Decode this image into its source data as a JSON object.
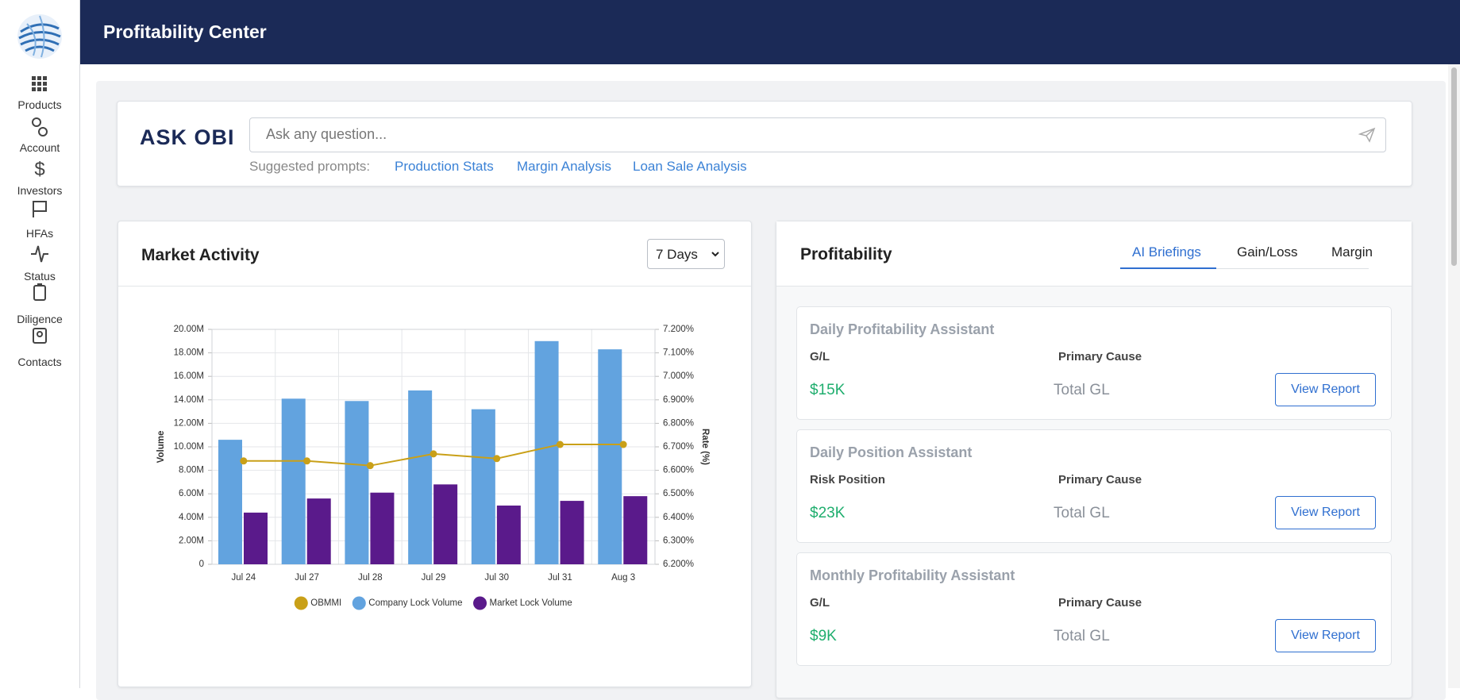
{
  "header": {
    "title": "Profitability Center"
  },
  "sidebar": {
    "items": [
      "Products",
      "Account",
      "Investors",
      "HFAs",
      "Status",
      "Diligence",
      "Contacts"
    ]
  },
  "ask": {
    "title": "ASK OBI",
    "placeholder": "Ask any question...",
    "suggested_label": "Suggested prompts:",
    "prompts": [
      "Production Stats",
      "Margin Analysis",
      "Loan Sale Analysis"
    ]
  },
  "market_activity": {
    "title": "Market Activity",
    "range": "7 Days"
  },
  "chart_data": {
    "type": "bar",
    "y_label": "Volume",
    "y2_label": "Rate (%)",
    "categories": [
      "Jul 24",
      "Jul 27",
      "Jul 28",
      "Jul 29",
      "Jul 30",
      "Jul 31",
      "Aug 3"
    ],
    "series": [
      {
        "name": "OBMMI",
        "type": "line",
        "axis": "y2",
        "color": "#c9a018",
        "values": [
          6.64,
          6.64,
          6.62,
          6.67,
          6.65,
          6.71,
          6.71
        ]
      },
      {
        "name": "Company Lock Volume",
        "color": "#62a3df",
        "values": [
          10600000,
          14100000,
          13900000,
          14800000,
          13200000,
          19000000,
          18300000
        ]
      },
      {
        "name": "Market Lock Volume",
        "color": "#5a1a8b",
        "values": [
          4400000,
          5600000,
          6100000,
          6800000,
          5000000,
          5400000,
          5800000
        ]
      }
    ],
    "ylim": [
      0,
      20000000
    ],
    "yticks": [
      0,
      {
        "value": 2000000,
        "label": "2.00M"
      },
      {
        "value": 4000000,
        "label": "4.00M"
      },
      {
        "value": 6000000,
        "label": "6.00M"
      },
      {
        "value": 8000000,
        "label": "8.00M"
      },
      {
        "value": 10000000,
        "label": "10.00M"
      },
      {
        "value": 12000000,
        "label": "12.00M"
      },
      {
        "value": 14000000,
        "label": "14.00M"
      },
      {
        "value": 16000000,
        "label": "16.00M"
      },
      {
        "value": 18000000,
        "label": "18.00M"
      },
      {
        "value": 20000000,
        "label": "20.00M"
      }
    ],
    "y2lim": [
      6.2,
      7.2
    ],
    "y2ticks": [
      {
        "value": 6.2,
        "label": "6.200%"
      },
      {
        "value": 6.3,
        "label": "6.300%"
      },
      {
        "value": 6.4,
        "label": "6.400%"
      },
      {
        "value": 6.5,
        "label": "6.500%"
      },
      {
        "value": 6.6,
        "label": "6.600%"
      },
      {
        "value": 6.7,
        "label": "6.700%"
      },
      {
        "value": 6.8,
        "label": "6.800%"
      },
      {
        "value": 6.9,
        "label": "6.900%"
      },
      {
        "value": 7.0,
        "label": "7.000%"
      },
      {
        "value": 7.1,
        "label": "7.100%"
      },
      {
        "value": 7.2,
        "label": "7.200%"
      }
    ],
    "grid": true,
    "legend": "bottom"
  },
  "profitability": {
    "title": "Profitability",
    "tabs": [
      "AI Briefings",
      "Gain/Loss",
      "Margin"
    ],
    "cards": [
      {
        "title": "Daily Profitability Assistant",
        "metric_label": "G/L",
        "cause_label": "Primary Cause",
        "value": "$15K",
        "cause": "Total GL",
        "button": "View Report"
      },
      {
        "title": "Daily Position Assistant",
        "metric_label": "Risk Position",
        "cause_label": "Primary Cause",
        "value": "$23K",
        "cause": "Total GL",
        "button": "View Report"
      },
      {
        "title": "Monthly Profitability Assistant",
        "metric_label": "G/L",
        "cause_label": "Primary Cause",
        "value": "$9K",
        "cause": "Total GL",
        "button": "View Report"
      }
    ]
  }
}
